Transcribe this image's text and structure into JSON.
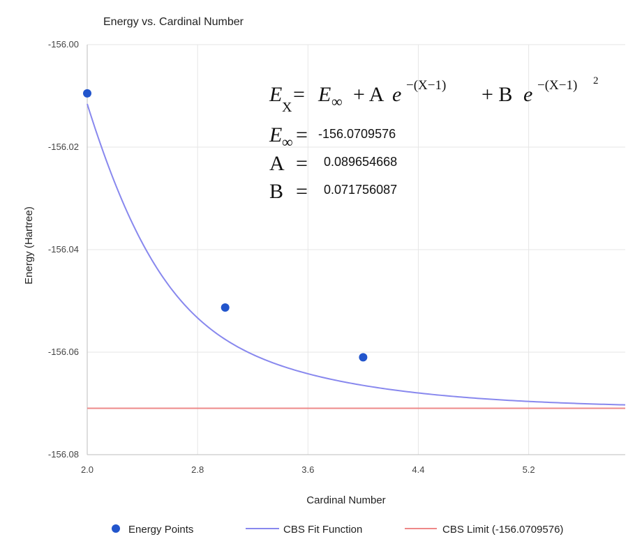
{
  "chart_data": {
    "type": "line",
    "title": "Energy vs. Cardinal Number",
    "xlabel": "Cardinal Number",
    "ylabel": "Energy (Hartree)",
    "xlim": [
      2.0,
      5.9
    ],
    "ylim": [
      -156.08,
      -156.0
    ],
    "x_ticks": [
      "2.0",
      "2.8",
      "3.6",
      "4.4",
      "5.2"
    ],
    "x_tick_values": [
      2.0,
      2.8,
      3.6,
      4.4,
      5.2
    ],
    "y_ticks": [
      "-156.00",
      "-156.02",
      "-156.04",
      "-156.06",
      "-156.08"
    ],
    "y_tick_values": [
      -156.0,
      -156.02,
      -156.04,
      -156.06,
      -156.08
    ],
    "grid": true,
    "legend_position": "bottom",
    "series": [
      {
        "name": "Energy Points",
        "kind": "scatter",
        "color": "#2255cc",
        "x": [
          2,
          3,
          4
        ],
        "y": [
          -156.0095,
          -156.0513,
          -156.061
        ]
      },
      {
        "name": "CBS Fit Function",
        "kind": "line",
        "color": "#8888ee",
        "formula": "E_inf + A*exp(-(x-1)) + B*exp(-(x-1)^2)"
      },
      {
        "name": "CBS Limit (-156.0709576)",
        "kind": "hline",
        "color": "#ee8888",
        "y": -156.0709576
      }
    ],
    "fit": {
      "E_inf": -156.0709576,
      "A": 0.089654668,
      "B": 0.071756087
    },
    "annotation": {
      "lhs": "E",
      "lhs_sub": "X",
      "eq_sign": "=",
      "rhs_terms": [
        "E",
        "∞",
        "+ A",
        "e",
        "−(X−1)",
        "+ B",
        "e",
        "−(X−1)",
        "2"
      ],
      "param_rows": [
        {
          "sym": "E",
          "sub": "∞",
          "eq": "=",
          "value": "-156.0709576"
        },
        {
          "sym": "A",
          "sub": "",
          "eq": "=",
          "value": "0.089654668"
        },
        {
          "sym": "B",
          "sub": "",
          "eq": "=",
          "value": "0.071756087"
        }
      ]
    }
  }
}
